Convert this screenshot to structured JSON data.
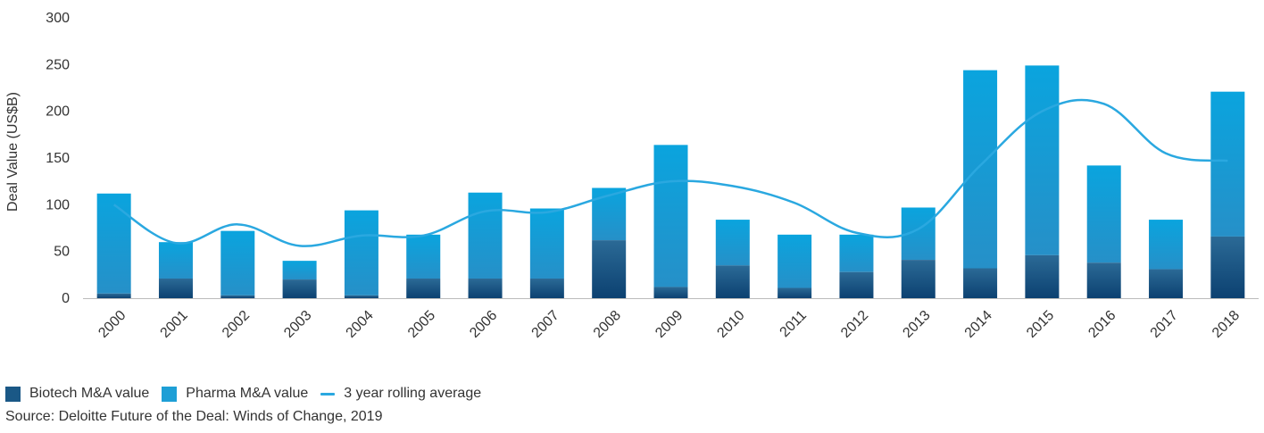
{
  "chart_data": {
    "type": "bar",
    "stacked": true,
    "categories": [
      "2000",
      "2001",
      "2002",
      "2003",
      "2004",
      "2005",
      "2006",
      "2007",
      "2008",
      "2009",
      "2010",
      "2011",
      "2012",
      "2013",
      "2014",
      "2015",
      "2016",
      "2017",
      "2018"
    ],
    "series": [
      {
        "name": "Biotech M&A value",
        "kind": "bar",
        "color": "#1a5886",
        "values": [
          5,
          21,
          3,
          20,
          3,
          21,
          21,
          21,
          62,
          12,
          35,
          11,
          28,
          41,
          32,
          46,
          38,
          31,
          66
        ]
      },
      {
        "name": "Pharma M&A value",
        "kind": "bar",
        "color": "#1e9fd6",
        "values": [
          107,
          39,
          69,
          20,
          91,
          47,
          92,
          75,
          56,
          152,
          49,
          57,
          40,
          56,
          212,
          203,
          104,
          53,
          155
        ]
      },
      {
        "name": "3 year rolling average",
        "kind": "line",
        "color": "#2aa8e0",
        "values": [
          100,
          59,
          79,
          56,
          67,
          67,
          93,
          92,
          110,
          125,
          120,
          102,
          70,
          74,
          142,
          200,
          208,
          155,
          147
        ]
      }
    ],
    "ylabel": "Deal Value (US$B)",
    "ylim": [
      0,
      300
    ],
    "yticks": [
      0,
      50,
      100,
      150,
      200,
      250,
      300
    ],
    "grid": false,
    "legend_position": "bottom-left"
  },
  "source_note": "Source: Deloitte Future of the Deal: Winds of Change, 2019"
}
